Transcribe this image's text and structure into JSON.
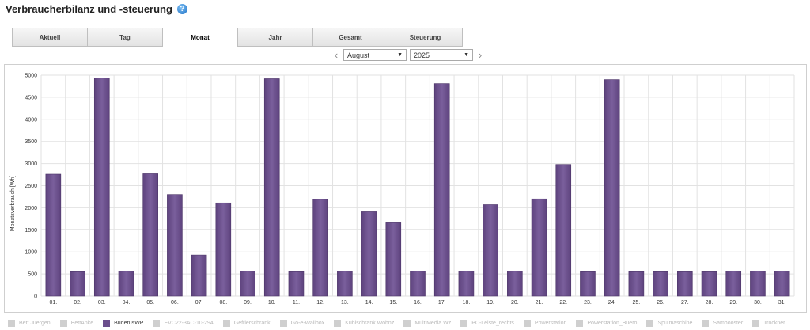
{
  "header": {
    "title": "Verbraucherbilanz und -steuerung",
    "help_icon": "?"
  },
  "tabs": [
    {
      "label": "Aktuell",
      "active": false
    },
    {
      "label": "Tag",
      "active": false
    },
    {
      "label": "Monat",
      "active": true
    },
    {
      "label": "Jahr",
      "active": false
    },
    {
      "label": "Gesamt",
      "active": false
    },
    {
      "label": "Steuerung",
      "active": false
    }
  ],
  "selectors": {
    "month": "August",
    "year": "2025",
    "prev_icon": "chevron-left-icon",
    "next_icon": "chevron-right-icon"
  },
  "colors": {
    "bar": "#6b4e8c",
    "bar_light": "#7d62a0",
    "grid": "#e2e2e2"
  },
  "chart_data": {
    "type": "bar",
    "ylabel": "Monatsverbrauch [Wh]",
    "ylim": [
      0,
      5000
    ],
    "yticks": [
      0,
      500,
      1000,
      1500,
      2000,
      2500,
      3000,
      3500,
      4000,
      4500,
      5000
    ],
    "grid": true,
    "categories": [
      "01.",
      "02.",
      "03.",
      "04.",
      "05.",
      "06.",
      "07.",
      "08.",
      "09.",
      "10.",
      "11.",
      "12.",
      "13.",
      "14.",
      "15.",
      "16.",
      "17.",
      "18.",
      "19.",
      "20.",
      "21.",
      "22.",
      "23.",
      "24.",
      "25.",
      "26.",
      "27.",
      "28.",
      "29.",
      "30.",
      "31."
    ],
    "series": [
      {
        "name": "BuderusWP",
        "values": [
          2760,
          550,
          4940,
          560,
          2770,
          2300,
          930,
          2110,
          560,
          4920,
          550,
          2190,
          560,
          1910,
          1660,
          560,
          4810,
          560,
          2070,
          560,
          2200,
          2980,
          550,
          4900,
          550,
          550,
          550,
          550,
          560,
          560,
          560
        ]
      }
    ]
  },
  "legend": [
    {
      "label": "Bett Juergen",
      "active": false
    },
    {
      "label": "BettAnke",
      "active": false
    },
    {
      "label": "BuderusWP",
      "active": true
    },
    {
      "label": "EVC22-3AC-10-294",
      "active": false
    },
    {
      "label": "Gefrierschrank",
      "active": false
    },
    {
      "label": "Go-e-Wallbox",
      "active": false
    },
    {
      "label": "Kühlschrank Wohnz",
      "active": false
    },
    {
      "label": "MultiMedia Wz",
      "active": false
    },
    {
      "label": "PC-Leiste_rechts",
      "active": false
    },
    {
      "label": "Powerstation",
      "active": false
    },
    {
      "label": "Powerstation_Buero",
      "active": false
    },
    {
      "label": "Spülmaschine",
      "active": false
    },
    {
      "label": "Sambooster",
      "active": false
    },
    {
      "label": "Trockner",
      "active": false
    }
  ]
}
